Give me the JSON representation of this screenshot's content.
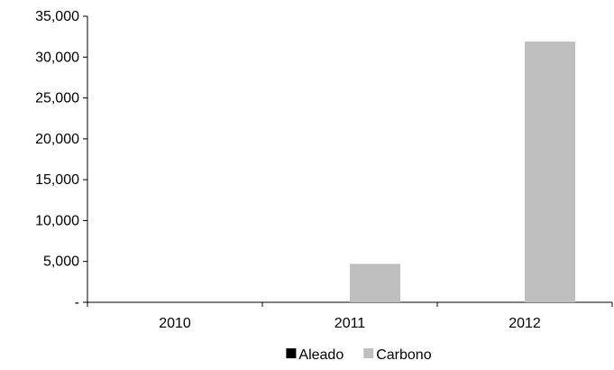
{
  "chart_data": {
    "type": "bar",
    "categories": [
      "2010",
      "2011",
      "2012"
    ],
    "series": [
      {
        "name": "Aleado",
        "values": [
          0,
          0,
          0
        ],
        "color": "#000000"
      },
      {
        "name": "Carbono",
        "values": [
          0,
          4700,
          31900
        ],
        "color": "#bfbfbf"
      }
    ],
    "ylim": [
      0,
      35000
    ],
    "yticks": [
      0,
      5000,
      10000,
      15000,
      20000,
      25000,
      30000,
      35000
    ],
    "ytick_labels": [
      "-",
      "5,000",
      "10,000",
      "15,000",
      "20,000",
      "25,000",
      "30,000",
      "35,000"
    ],
    "legend_position": "bottom",
    "grid": false
  }
}
